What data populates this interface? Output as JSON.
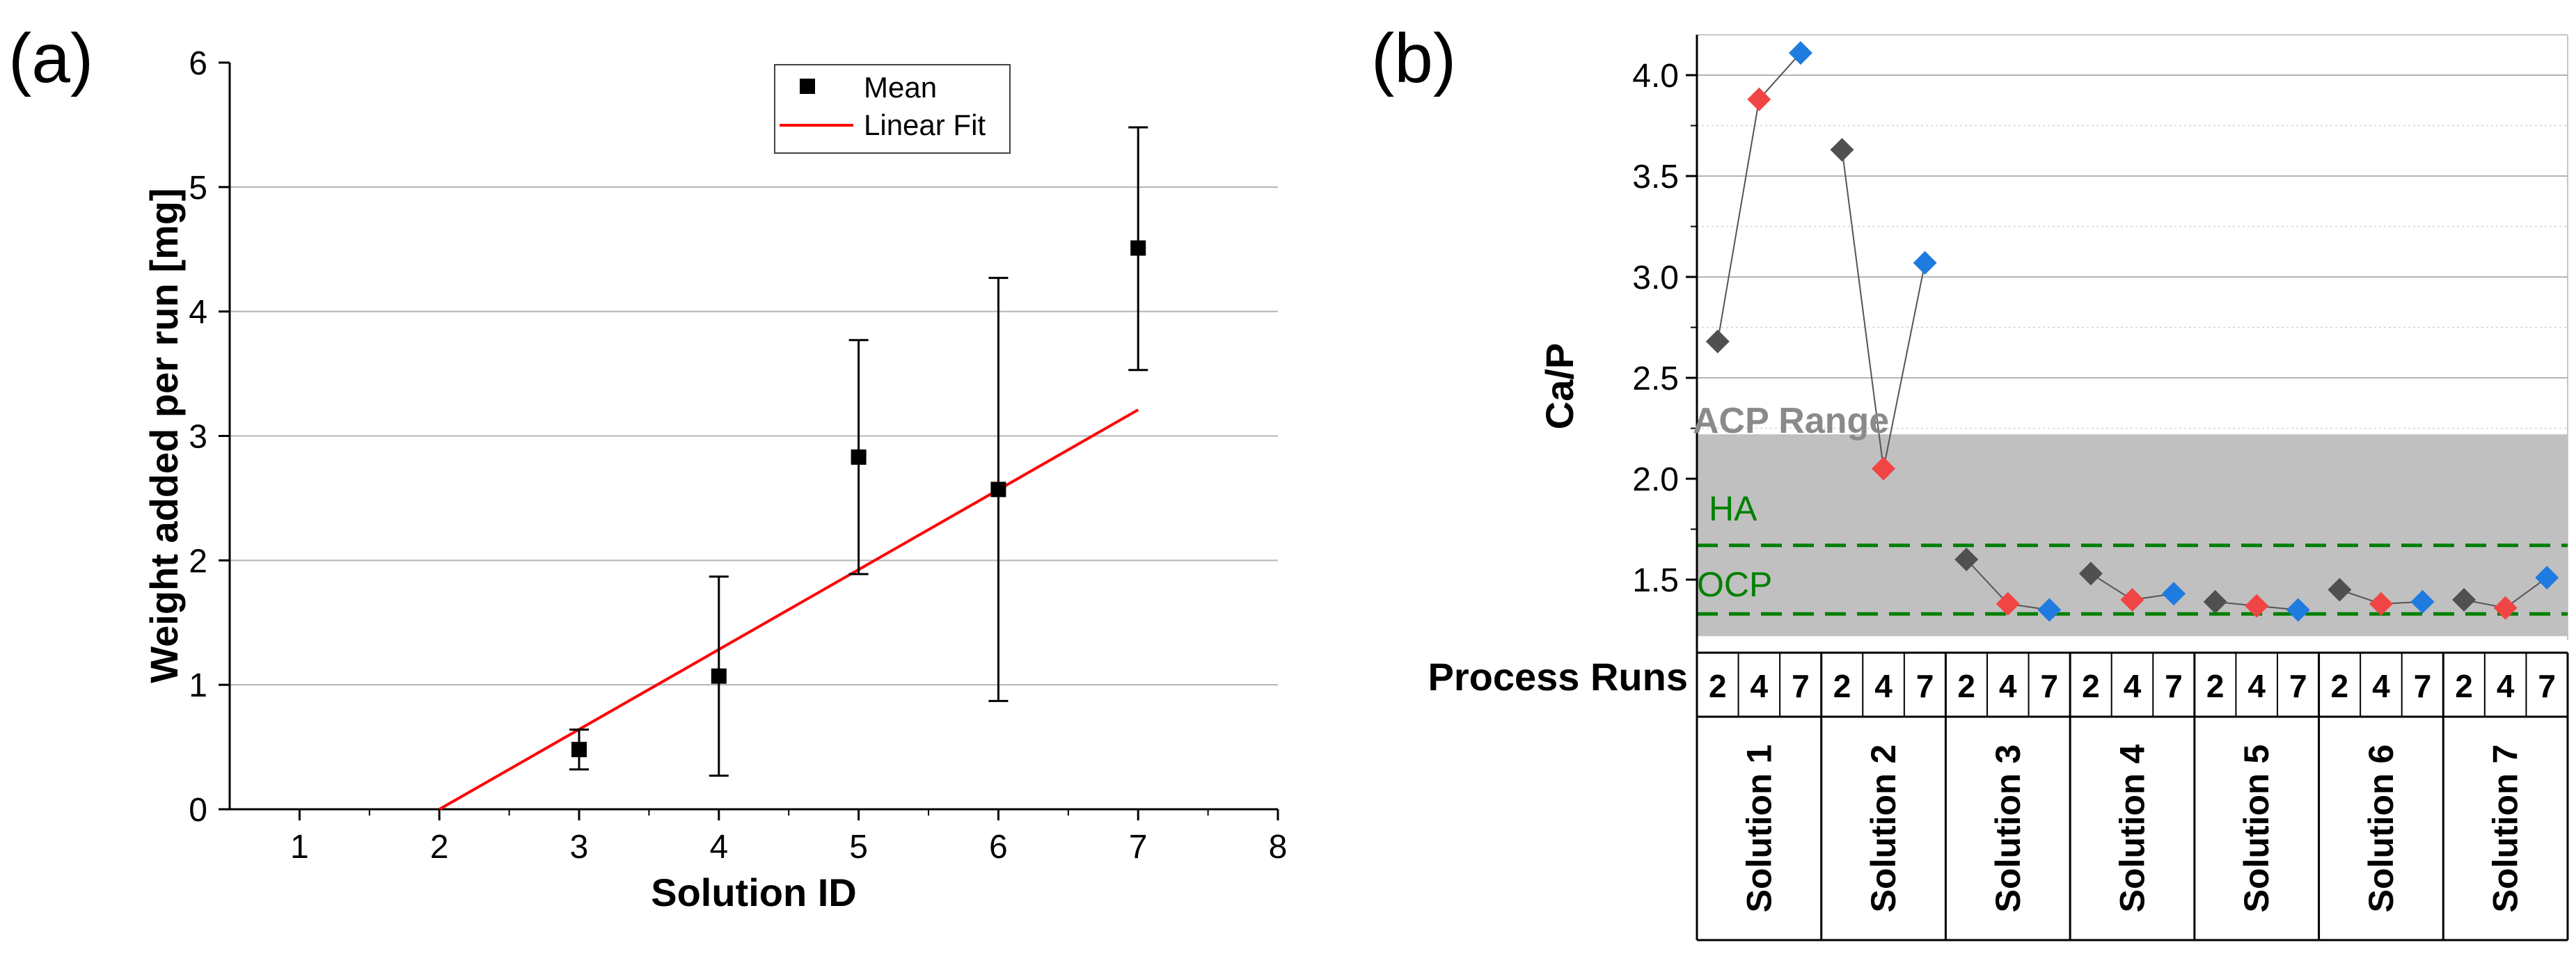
{
  "chart_data": [
    {
      "panel": "(a)",
      "type": "scatter",
      "title": "",
      "xlabel": "Solution ID",
      "ylabel": "Weight added per run [mg]",
      "xlim": [
        0.5,
        8
      ],
      "ylim": [
        0,
        6
      ],
      "xticks": [
        1,
        2,
        3,
        4,
        5,
        6,
        7,
        8
      ],
      "yticks": [
        0,
        1,
        2,
        3,
        4,
        5,
        6
      ],
      "grid": "horizontal",
      "legend": {
        "position": "top-right",
        "entries": [
          "Mean",
          "Linear Fit"
        ]
      },
      "series": [
        {
          "name": "Mean",
          "marker": "square",
          "color": "#000000",
          "points": [
            {
              "x": 3,
              "y": 0.48,
              "err_low": 0.32,
              "err_high": 0.64
            },
            {
              "x": 4,
              "y": 1.07,
              "err_low": 0.27,
              "err_high": 1.87
            },
            {
              "x": 5,
              "y": 2.83,
              "err_low": 1.89,
              "err_high": 3.77
            },
            {
              "x": 6,
              "y": 2.57,
              "err_low": 0.87,
              "err_high": 4.27
            },
            {
              "x": 7,
              "y": 4.51,
              "err_low": 3.53,
              "err_high": 5.48
            }
          ]
        },
        {
          "name": "Linear Fit",
          "color": "#ff0000",
          "x": [
            2,
            7
          ],
          "y": [
            0,
            3.21
          ]
        }
      ]
    },
    {
      "panel": "(b)",
      "type": "scatter",
      "title": "",
      "ylabel": "Ca/P",
      "ylim": [
        1.2,
        4.2
      ],
      "yticks": [
        "1.5",
        "2.0",
        "2.5",
        "3.0",
        "3.5",
        "4.0"
      ],
      "runs_label": "Process Runs",
      "runs": [
        "2",
        "4",
        "7"
      ],
      "solutions": [
        "Solution 1",
        "Solution 2",
        "Solution 3",
        "Solution 4",
        "Solution 5",
        "Solution 6",
        "Solution 7"
      ],
      "run_colors": {
        "2": "#505050",
        "4": "#f14545",
        "7": "#1f7be0"
      },
      "values": [
        [
          2.68,
          3.88,
          4.11
        ],
        [
          3.63,
          2.05,
          3.07
        ],
        [
          1.6,
          1.38,
          1.35
        ],
        [
          1.53,
          1.4,
          1.43
        ],
        [
          1.39,
          1.37,
          1.35
        ],
        [
          1.45,
          1.38,
          1.39
        ],
        [
          1.4,
          1.36,
          1.51
        ]
      ],
      "bands": [
        {
          "label": "ACP Range",
          "from": 1.22,
          "to": 2.22,
          "color": "#c0c0c0"
        }
      ],
      "reference_lines": [
        {
          "label": "HA",
          "y": 1.67,
          "color": "#008000",
          "style": "dashed"
        },
        {
          "label": "OCP",
          "y": 1.33,
          "color": "#008000",
          "style": "dashed"
        }
      ]
    }
  ]
}
